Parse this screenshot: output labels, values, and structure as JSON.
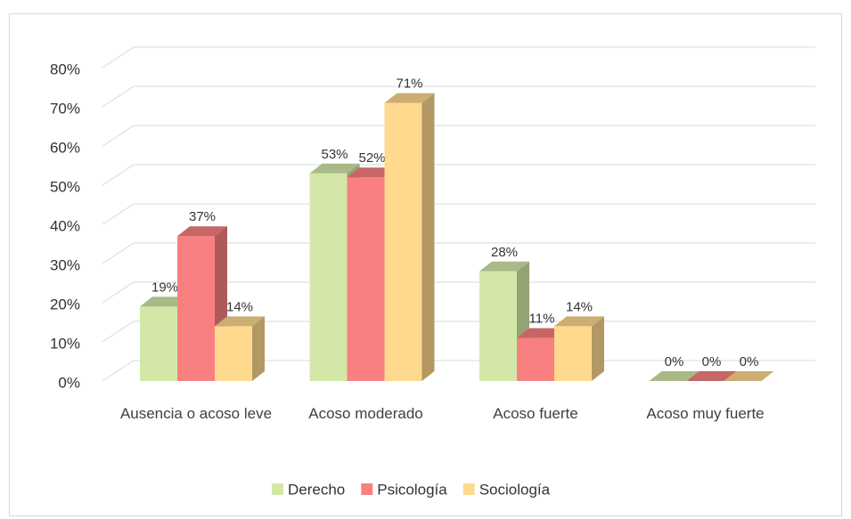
{
  "chart_data": {
    "type": "bar3d",
    "categories": [
      "Ausencia o acoso leve",
      "Acoso moderado",
      "Acoso fuerte",
      "Acoso muy fuerte"
    ],
    "series": [
      {
        "name": "Derecho",
        "color": "#d3e8a8",
        "values": [
          19,
          53,
          28,
          0
        ],
        "value_labels": [
          "19%",
          "53%",
          "28%",
          "0%"
        ]
      },
      {
        "name": "Psicología",
        "color": "#f98080",
        "values": [
          37,
          52,
          11,
          0
        ],
        "value_labels": [
          "37%",
          "52%",
          "11%",
          "0%"
        ]
      },
      {
        "name": "Sociología",
        "color": "#ffd98e",
        "values": [
          14,
          71,
          14,
          0
        ],
        "value_labels": [
          "14%",
          "71%",
          "14%",
          "0%"
        ]
      }
    ],
    "ylim": [
      0,
      80
    ],
    "yticks": [
      {
        "value": 0,
        "label": "0%"
      },
      {
        "value": 10,
        "label": "10%"
      },
      {
        "value": 20,
        "label": "20%"
      },
      {
        "value": 30,
        "label": "30%"
      },
      {
        "value": 40,
        "label": "40%"
      },
      {
        "value": 50,
        "label": "50%"
      },
      {
        "value": 60,
        "label": "60%"
      },
      {
        "value": 70,
        "label": "70%"
      },
      {
        "value": 80,
        "label": "80%"
      }
    ],
    "grid": true,
    "legend": "bottom"
  }
}
